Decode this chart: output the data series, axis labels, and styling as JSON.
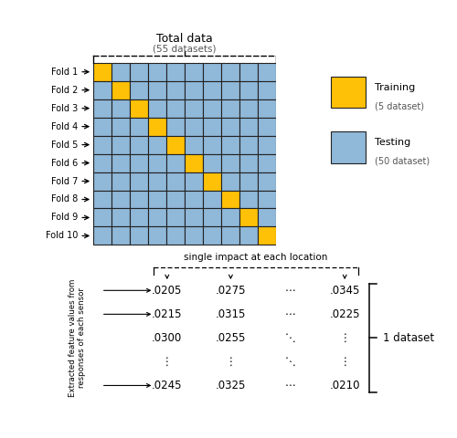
{
  "title_top": "Total data",
  "subtitle_top": "(55 datasets)",
  "n_folds": 10,
  "n_cols": 10,
  "fold_labels": [
    "Fold 1",
    "Fold 2",
    "Fold 3",
    "Fold 4",
    "Fold 5",
    "Fold 6",
    "Fold 7",
    "Fold 8",
    "Fold 9",
    "Fold 10"
  ],
  "training_color": "#FFC107",
  "testing_color": "#90B8D8",
  "grid_edge_color": "#222222",
  "legend_training_label1": "Training",
  "legend_training_label2": "(5 dataset)",
  "legend_testing_label1": "Testing",
  "legend_testing_label2": "(50 dataset)",
  "matrix_rows": [
    [
      1,
      0,
      0,
      0,
      0,
      0,
      0,
      0,
      0,
      0
    ],
    [
      0,
      1,
      0,
      0,
      0,
      0,
      0,
      0,
      0,
      0
    ],
    [
      0,
      0,
      1,
      0,
      0,
      0,
      0,
      0,
      0,
      0
    ],
    [
      0,
      0,
      0,
      1,
      0,
      0,
      0,
      0,
      0,
      0
    ],
    [
      0,
      0,
      0,
      0,
      1,
      0,
      0,
      0,
      0,
      0
    ],
    [
      0,
      0,
      0,
      0,
      0,
      1,
      0,
      0,
      0,
      0
    ],
    [
      0,
      0,
      0,
      0,
      0,
      0,
      1,
      0,
      0,
      0
    ],
    [
      0,
      0,
      0,
      0,
      0,
      0,
      0,
      1,
      0,
      0
    ],
    [
      0,
      0,
      0,
      0,
      0,
      0,
      0,
      0,
      1,
      0
    ],
    [
      0,
      0,
      0,
      0,
      0,
      0,
      0,
      0,
      0,
      1
    ]
  ],
  "bottom_section": {
    "arrow_label": "single impact at each location",
    "row_arrow_label": "Extracted feature values from\nresponses of each sensor",
    "matrix_values": [
      [
        ".0205",
        ".0275",
        "⋯",
        ".0345"
      ],
      [
        ".0215",
        ".0315",
        "⋯",
        ".0225"
      ],
      [
        ".0300",
        ".0255",
        "⋱",
        "⋮"
      ],
      [
        "⋮",
        "⋮",
        "⋱",
        "⋮"
      ],
      [
        ".0245",
        ".0325",
        "⋯",
        ".0210"
      ]
    ],
    "dataset_label": "1 dataset"
  }
}
